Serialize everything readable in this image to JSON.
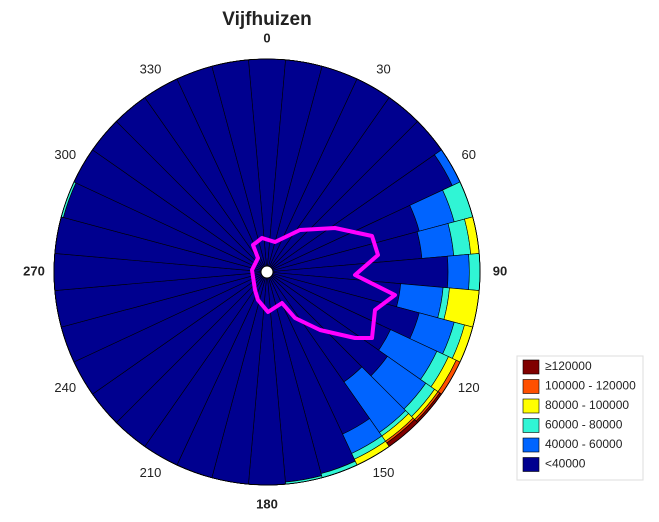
{
  "chart_data": {
    "type": "polar-stacked-bar",
    "title": "Vijfhuizen",
    "categories": [
      0,
      10,
      20,
      30,
      40,
      50,
      60,
      70,
      80,
      90,
      100,
      110,
      120,
      130,
      140,
      150,
      160,
      170,
      180,
      190,
      200,
      210,
      220,
      230,
      240,
      250,
      260,
      270,
      280,
      290,
      300,
      310,
      320,
      330,
      340,
      350
    ],
    "rlim": [
      0,
      100
    ],
    "angle_ticks": [
      0,
      30,
      60,
      90,
      120,
      150,
      180,
      210,
      240,
      270,
      300,
      330
    ],
    "series": [
      {
        "name": "<40000",
        "color": "#00008f",
        "values": [
          100,
          100,
          100,
          100,
          100,
          100,
          96,
          74,
          73,
          85,
          63,
          74,
          64,
          69,
          63,
          84,
          98,
          99,
          100,
          100,
          100,
          100,
          100,
          100,
          100,
          100,
          100,
          100,
          100,
          99,
          100,
          100,
          100,
          100,
          100,
          100
        ]
      },
      {
        "name": "40000 - 60000",
        "color": "#0064ff",
        "values": [
          0,
          0,
          0,
          0,
          0,
          0,
          4,
          17,
          15,
          10,
          20,
          17,
          24,
          22,
          29,
          10,
          0,
          0,
          0,
          0,
          0,
          0,
          0,
          0,
          0,
          0,
          0,
          0,
          0,
          0,
          0,
          0,
          0,
          0,
          0,
          0
        ]
      },
      {
        "name": "60000 - 80000",
        "color": "#30f5d5",
        "values": [
          0,
          0,
          0,
          0,
          0,
          0,
          0,
          9,
          8,
          5,
          3,
          5,
          6,
          5,
          2,
          3,
          2,
          1,
          0,
          0,
          0,
          0,
          0,
          0,
          0,
          0,
          0,
          0,
          0,
          1,
          0,
          0,
          0,
          0,
          0,
          0
        ]
      },
      {
        "name": "80000 - 100000",
        "color": "#ffff00",
        "values": [
          0,
          0,
          0,
          0,
          0,
          0,
          0,
          0,
          4,
          0,
          14,
          4,
          4,
          2,
          3,
          3,
          0,
          0,
          0,
          0,
          0,
          0,
          0,
          0,
          0,
          0,
          0,
          0,
          0,
          0,
          0,
          0,
          0,
          0,
          0,
          0
        ]
      },
      {
        "name": "100000 - 120000",
        "color": "#ff5000",
        "values": [
          0,
          0,
          0,
          0,
          0,
          0,
          0,
          0,
          0,
          0,
          0,
          0,
          2,
          1,
          1,
          0,
          0,
          0,
          0,
          0,
          0,
          0,
          0,
          0,
          0,
          0,
          0,
          0,
          0,
          0,
          0,
          0,
          0,
          0,
          0,
          0
        ]
      },
      {
        "name": "≥120000",
        "color": "#800000",
        "values": [
          0,
          0,
          0,
          0,
          0,
          0,
          0,
          0,
          0,
          0,
          0,
          0,
          0,
          1,
          2,
          0,
          0,
          0,
          0,
          0,
          0,
          0,
          0,
          0,
          0,
          0,
          0,
          0,
          0,
          0,
          0,
          0,
          0,
          0,
          0,
          0
        ]
      }
    ]
  }
}
